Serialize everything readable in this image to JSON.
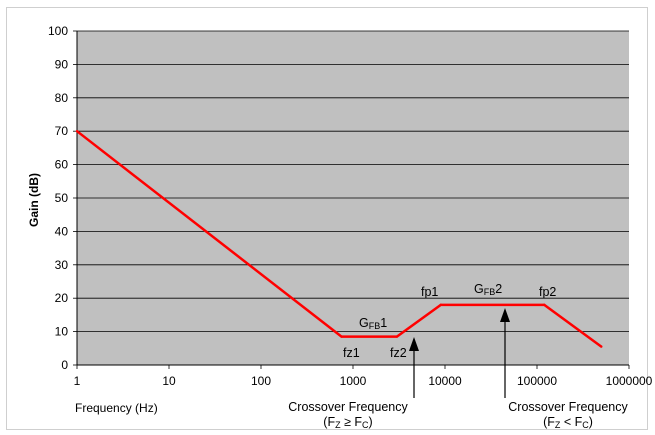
{
  "chart_data": {
    "type": "line",
    "title": "",
    "xlabel": "Frequency (Hz)",
    "ylabel": "Gain (dB)",
    "xscale": "log",
    "xlim": [
      1,
      1000000
    ],
    "ylim": [
      0,
      100
    ],
    "xticks": [
      "1",
      "10",
      "100",
      "1000",
      "10000",
      "100000",
      "1000000"
    ],
    "yticks": [
      "0",
      "10",
      "20",
      "30",
      "40",
      "50",
      "60",
      "70",
      "80",
      "90",
      "100"
    ],
    "grid": "horizontal",
    "plot_background": "#c0c0c0",
    "line_color": "#ff0000",
    "series": [
      {
        "x": [
          1,
          750,
          3000,
          9000,
          120000,
          500000
        ],
        "y": [
          70,
          8.5,
          8.5,
          18,
          18,
          5.5
        ]
      }
    ],
    "annotations": {
      "gfb1": {
        "main": "G",
        "sub": "FB",
        "suffix": "1"
      },
      "gfb2": {
        "main": "G",
        "sub": "FB",
        "suffix": "2"
      },
      "fz1": "fz1",
      "fz2": "fz2",
      "fp1": "fp1",
      "fp2": "fp2",
      "crossover1": {
        "line1": "Crossover Frequency",
        "open": "(F",
        "z_sub": "Z",
        "op": " ≥ F",
        "c_sub": "C",
        "close": ")"
      },
      "crossover2": {
        "line1": "Crossover Frequency",
        "open": "(F",
        "z_sub": "Z",
        "op": " < F",
        "c_sub": "C",
        "close": ")"
      }
    }
  }
}
